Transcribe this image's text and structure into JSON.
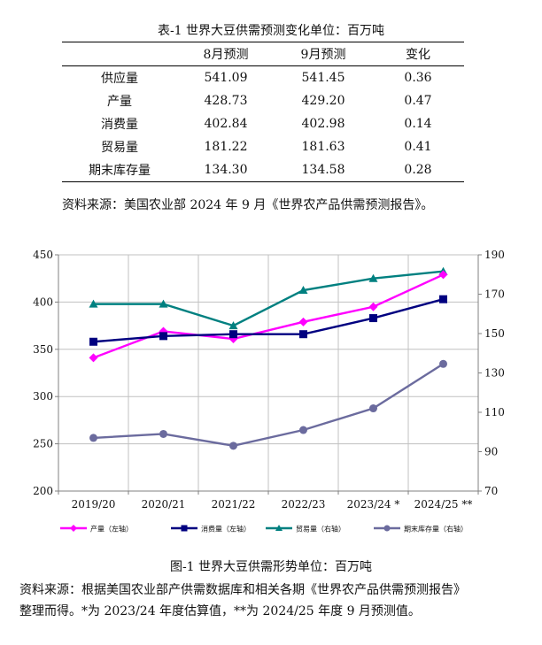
{
  "table": {
    "title": "表-1 世界大豆供需预测变化单位：百万吨",
    "headers": [
      "",
      "8月预测",
      "9月预测",
      "变化"
    ],
    "rows": [
      [
        "供应量",
        "541.09",
        "541.45",
        "0.36"
      ],
      [
        "产量",
        "428.73",
        "429.20",
        "0.47"
      ],
      [
        "消费量",
        "402.84",
        "402.98",
        "0.14"
      ],
      [
        "贸易量",
        "181.22",
        "181.63",
        "0.41"
      ],
      [
        "期末库存量",
        "134.30",
        "134.58",
        "0.28"
      ]
    ],
    "source": "资料来源：美国农业部 2024 年 9 月《世界农产品供需预测报告》。"
  },
  "chart_data": {
    "type": "line",
    "categories": [
      "2019/20",
      "2020/21",
      "2021/22",
      "2022/23",
      "2023/24 *",
      "2024/25 **"
    ],
    "y_left": {
      "min": 200,
      "max": 450,
      "ticks": [
        200,
        250,
        300,
        350,
        400,
        450
      ]
    },
    "y_right": {
      "min": 70,
      "max": 190,
      "ticks": [
        70,
        90,
        110,
        130,
        150,
        170,
        190
      ]
    },
    "series": [
      {
        "name": "产量（左轴）",
        "axis": "left",
        "color": "#ff00ff",
        "marker": "diamond",
        "values": [
          341,
          369,
          361,
          379,
          395,
          429
        ]
      },
      {
        "name": "消费量（左轴）",
        "axis": "left",
        "color": "#000080",
        "marker": "square",
        "values": [
          358,
          364,
          366,
          366,
          383,
          403
        ]
      },
      {
        "name": "贸易量（右轴）",
        "axis": "right",
        "color": "#008080",
        "marker": "triangle",
        "values": [
          165,
          165,
          154,
          172,
          178,
          181.6
        ]
      },
      {
        "name": "期末库存量（右轴）",
        "axis": "right",
        "color": "#6b6b9e",
        "marker": "circle",
        "values": [
          97,
          99,
          93,
          101,
          112,
          134.6
        ]
      }
    ],
    "grid": true,
    "legend": "bottom"
  },
  "figure": {
    "caption": "图-1 世界大豆供需形势单位：百万吨",
    "source_line1": "资料来源：根据美国农业部产供需数据库和相关各期《世界农产品供需预测报告》",
    "source_line2": "整理而得。*为 2023/24 年度估算值，**为 2024/25 年度 9 月预测值。"
  }
}
